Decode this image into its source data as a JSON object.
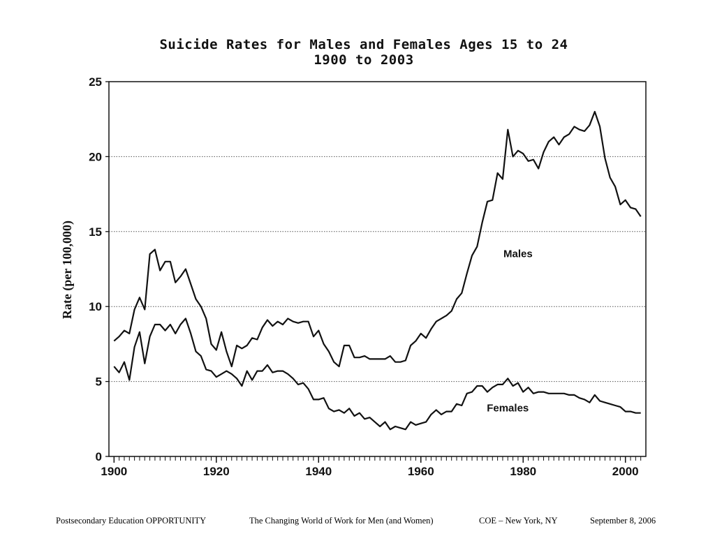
{
  "slide": {
    "title_line1": "Suicide Rates for Males and Females Ages 15 to 24",
    "title_line2": "1900 to 2003"
  },
  "footer": {
    "left": "Postsecondary Education OPPORTUNITY",
    "center": "The Changing World of Work for Men (and Women)",
    "place": "COE – New York, NY",
    "date": "September 8, 2006"
  },
  "chart_data": {
    "type": "line",
    "title": "Suicide Rates for Males and Females Ages 15 to 24 1900 to 2003",
    "xlabel": "",
    "ylabel": "Rate (per 100,000)",
    "xlim": [
      1899,
      2004
    ],
    "ylim": [
      0,
      25
    ],
    "x_ticks": [
      1900,
      1920,
      1940,
      1960,
      1980,
      2000
    ],
    "y_ticks": [
      0,
      5,
      10,
      15,
      20,
      25
    ],
    "grid": "horizontal dotted",
    "series_label_placement": "inline",
    "series": [
      {
        "name": "Males",
        "label_position": [
          1979,
          13.3
        ],
        "points": [
          [
            1900,
            7.7
          ],
          [
            1901,
            8.0
          ],
          [
            1902,
            8.4
          ],
          [
            1903,
            8.2
          ],
          [
            1904,
            9.8
          ],
          [
            1905,
            10.6
          ],
          [
            1906,
            9.8
          ],
          [
            1907,
            13.5
          ],
          [
            1908,
            13.8
          ],
          [
            1909,
            12.4
          ],
          [
            1910,
            13.0
          ],
          [
            1911,
            13.0
          ],
          [
            1912,
            11.6
          ],
          [
            1913,
            12.0
          ],
          [
            1914,
            12.5
          ],
          [
            1915,
            11.5
          ],
          [
            1916,
            10.5
          ],
          [
            1917,
            10.0
          ],
          [
            1918,
            9.2
          ],
          [
            1919,
            7.5
          ],
          [
            1920,
            7.1
          ],
          [
            1921,
            8.3
          ],
          [
            1922,
            7.0
          ],
          [
            1923,
            6.0
          ],
          [
            1924,
            7.4
          ],
          [
            1925,
            7.2
          ],
          [
            1926,
            7.4
          ],
          [
            1927,
            7.9
          ],
          [
            1928,
            7.8
          ],
          [
            1929,
            8.6
          ],
          [
            1930,
            9.1
          ],
          [
            1931,
            8.7
          ],
          [
            1932,
            9.0
          ],
          [
            1933,
            8.8
          ],
          [
            1934,
            9.2
          ],
          [
            1935,
            9.0
          ],
          [
            1936,
            8.9
          ],
          [
            1937,
            9.0
          ],
          [
            1938,
            9.0
          ],
          [
            1939,
            8.0
          ],
          [
            1940,
            8.4
          ],
          [
            1941,
            7.5
          ],
          [
            1942,
            7.0
          ],
          [
            1943,
            6.3
          ],
          [
            1944,
            6.0
          ],
          [
            1945,
            7.4
          ],
          [
            1946,
            7.4
          ],
          [
            1947,
            6.6
          ],
          [
            1948,
            6.6
          ],
          [
            1949,
            6.7
          ],
          [
            1950,
            6.5
          ],
          [
            1951,
            6.5
          ],
          [
            1952,
            6.5
          ],
          [
            1953,
            6.5
          ],
          [
            1954,
            6.7
          ],
          [
            1955,
            6.3
          ],
          [
            1956,
            6.3
          ],
          [
            1957,
            6.4
          ],
          [
            1958,
            7.4
          ],
          [
            1959,
            7.7
          ],
          [
            1960,
            8.2
          ],
          [
            1961,
            7.9
          ],
          [
            1962,
            8.5
          ],
          [
            1963,
            9.0
          ],
          [
            1964,
            9.2
          ],
          [
            1965,
            9.4
          ],
          [
            1966,
            9.7
          ],
          [
            1967,
            10.5
          ],
          [
            1968,
            10.9
          ],
          [
            1969,
            12.2
          ],
          [
            1970,
            13.4
          ],
          [
            1971,
            14.0
          ],
          [
            1972,
            15.6
          ],
          [
            1973,
            17.0
          ],
          [
            1974,
            17.1
          ],
          [
            1975,
            18.9
          ],
          [
            1976,
            18.5
          ],
          [
            1977,
            21.8
          ],
          [
            1978,
            20.0
          ],
          [
            1979,
            20.4
          ],
          [
            1980,
            20.2
          ],
          [
            1981,
            19.7
          ],
          [
            1982,
            19.8
          ],
          [
            1983,
            19.2
          ],
          [
            1984,
            20.3
          ],
          [
            1985,
            21.0
          ],
          [
            1986,
            21.3
          ],
          [
            1987,
            20.8
          ],
          [
            1988,
            21.3
          ],
          [
            1989,
            21.5
          ],
          [
            1990,
            22.0
          ],
          [
            1991,
            21.8
          ],
          [
            1992,
            21.7
          ],
          [
            1993,
            22.1
          ],
          [
            1994,
            23.0
          ],
          [
            1995,
            22.0
          ],
          [
            1996,
            19.9
          ],
          [
            1997,
            18.6
          ],
          [
            1998,
            18.0
          ],
          [
            1999,
            16.8
          ],
          [
            2000,
            17.1
          ],
          [
            2001,
            16.6
          ],
          [
            2002,
            16.5
          ],
          [
            2003,
            16.0
          ]
        ]
      },
      {
        "name": "Females",
        "label_position": [
          1977,
          3.0
        ],
        "points": [
          [
            1900,
            6.0
          ],
          [
            1901,
            5.6
          ],
          [
            1902,
            6.3
          ],
          [
            1903,
            5.1
          ],
          [
            1904,
            7.3
          ],
          [
            1905,
            8.3
          ],
          [
            1906,
            6.2
          ],
          [
            1907,
            8.0
          ],
          [
            1908,
            8.8
          ],
          [
            1909,
            8.8
          ],
          [
            1910,
            8.4
          ],
          [
            1911,
            8.8
          ],
          [
            1912,
            8.2
          ],
          [
            1913,
            8.8
          ],
          [
            1914,
            9.2
          ],
          [
            1915,
            8.2
          ],
          [
            1916,
            7.0
          ],
          [
            1917,
            6.7
          ],
          [
            1918,
            5.8
          ],
          [
            1919,
            5.7
          ],
          [
            1920,
            5.3
          ],
          [
            1921,
            5.5
          ],
          [
            1922,
            5.7
          ],
          [
            1923,
            5.5
          ],
          [
            1924,
            5.2
          ],
          [
            1925,
            4.7
          ],
          [
            1926,
            5.7
          ],
          [
            1927,
            5.1
          ],
          [
            1928,
            5.7
          ],
          [
            1929,
            5.7
          ],
          [
            1930,
            6.1
          ],
          [
            1931,
            5.6
          ],
          [
            1932,
            5.7
          ],
          [
            1933,
            5.7
          ],
          [
            1934,
            5.5
          ],
          [
            1935,
            5.2
          ],
          [
            1936,
            4.8
          ],
          [
            1937,
            4.9
          ],
          [
            1938,
            4.5
          ],
          [
            1939,
            3.8
          ],
          [
            1940,
            3.8
          ],
          [
            1941,
            3.9
          ],
          [
            1942,
            3.2
          ],
          [
            1943,
            3.0
          ],
          [
            1944,
            3.1
          ],
          [
            1945,
            2.9
          ],
          [
            1946,
            3.2
          ],
          [
            1947,
            2.7
          ],
          [
            1948,
            2.9
          ],
          [
            1949,
            2.5
          ],
          [
            1950,
            2.6
          ],
          [
            1951,
            2.3
          ],
          [
            1952,
            2.0
          ],
          [
            1953,
            2.3
          ],
          [
            1954,
            1.8
          ],
          [
            1955,
            2.0
          ],
          [
            1956,
            1.9
          ],
          [
            1957,
            1.8
          ],
          [
            1958,
            2.3
          ],
          [
            1959,
            2.1
          ],
          [
            1960,
            2.2
          ],
          [
            1961,
            2.3
          ],
          [
            1962,
            2.8
          ],
          [
            1963,
            3.1
          ],
          [
            1964,
            2.8
          ],
          [
            1965,
            3.0
          ],
          [
            1966,
            3.0
          ],
          [
            1967,
            3.5
          ],
          [
            1968,
            3.4
          ],
          [
            1969,
            4.2
          ],
          [
            1970,
            4.3
          ],
          [
            1971,
            4.7
          ],
          [
            1972,
            4.7
          ],
          [
            1973,
            4.3
          ],
          [
            1974,
            4.6
          ],
          [
            1975,
            4.8
          ],
          [
            1976,
            4.8
          ],
          [
            1977,
            5.2
          ],
          [
            1978,
            4.7
          ],
          [
            1979,
            4.9
          ],
          [
            1980,
            4.3
          ],
          [
            1981,
            4.6
          ],
          [
            1982,
            4.2
          ],
          [
            1983,
            4.3
          ],
          [
            1984,
            4.3
          ],
          [
            1985,
            4.2
          ],
          [
            1986,
            4.2
          ],
          [
            1987,
            4.2
          ],
          [
            1988,
            4.2
          ],
          [
            1989,
            4.1
          ],
          [
            1990,
            4.1
          ],
          [
            1991,
            3.9
          ],
          [
            1992,
            3.8
          ],
          [
            1993,
            3.6
          ],
          [
            1994,
            4.1
          ],
          [
            1995,
            3.7
          ],
          [
            1996,
            3.6
          ],
          [
            1997,
            3.5
          ],
          [
            1998,
            3.4
          ],
          [
            1999,
            3.3
          ],
          [
            2000,
            3.0
          ],
          [
            2001,
            3.0
          ],
          [
            2002,
            2.9
          ],
          [
            2003,
            2.9
          ]
        ]
      }
    ]
  }
}
